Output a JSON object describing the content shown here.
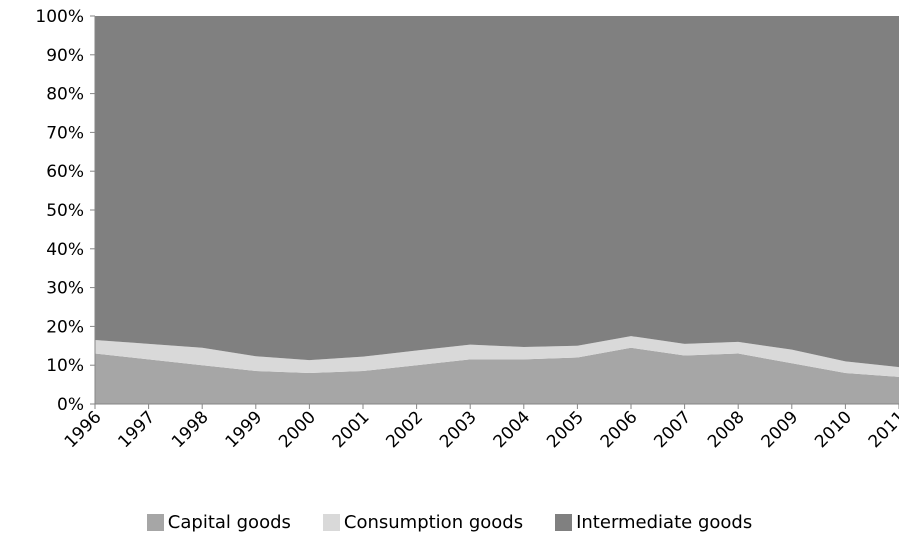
{
  "chart_data": {
    "type": "area",
    "stacked": true,
    "percent": true,
    "title": "",
    "xlabel": "",
    "ylabel": "",
    "ylim": [
      0,
      100
    ],
    "yticks": [
      "0%",
      "10%",
      "20%",
      "30%",
      "40%",
      "50%",
      "60%",
      "70%",
      "80%",
      "90%",
      "100%"
    ],
    "categories": [
      "1996",
      "1997",
      "1998",
      "1999",
      "2000",
      "2001",
      "2002",
      "2003",
      "2004",
      "2005",
      "2006",
      "2007",
      "2008",
      "2009",
      "2010",
      "2011"
    ],
    "series": [
      {
        "name": "Capital goods",
        "color": "#a6a6a6",
        "values": [
          13.0,
          11.5,
          10.0,
          8.5,
          8.0,
          8.5,
          10.0,
          11.5,
          11.5,
          12.0,
          14.5,
          12.5,
          13.0,
          10.5,
          8.0,
          7.0
        ]
      },
      {
        "name": "Consumption goods",
        "color": "#d9d9d9",
        "values": [
          3.5,
          4.0,
          4.5,
          3.8,
          3.3,
          3.7,
          3.8,
          3.8,
          3.2,
          3.0,
          3.0,
          3.0,
          3.0,
          3.5,
          3.0,
          2.5
        ]
      },
      {
        "name": "Intermediate goods",
        "color": "#808080",
        "values": [
          83.5,
          84.5,
          85.5,
          87.7,
          88.7,
          87.8,
          86.2,
          84.7,
          85.3,
          85.0,
          82.5,
          84.5,
          84.0,
          86.0,
          89.0,
          90.5
        ]
      }
    ],
    "legend": "bottom",
    "grid": false
  }
}
